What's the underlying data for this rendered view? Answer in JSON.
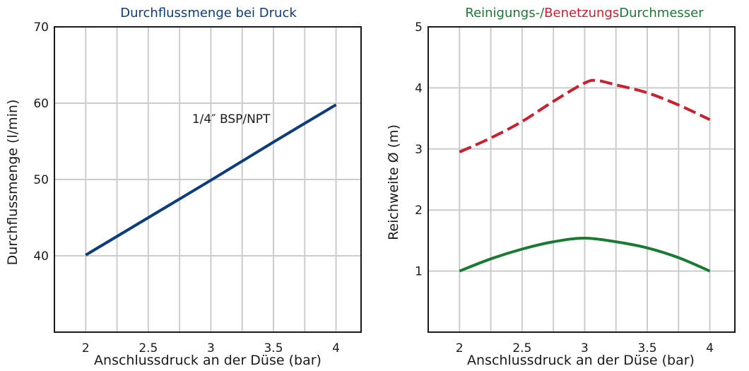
{
  "chart_data": [
    {
      "type": "line",
      "title": "Durchflussmenge bei Druck",
      "title_color": "#0d3c7a",
      "xlabel": "Anschlussdruck an der Düse (bar)",
      "ylabel": "Durchflussmenge (l/min)",
      "xlim": [
        1.75,
        4.2
      ],
      "ylim": [
        30,
        70
      ],
      "xticks": [
        2,
        2.5,
        3,
        3.5,
        4
      ],
      "xtick_labels": [
        "2",
        "2.5",
        "3",
        "3.5",
        "4"
      ],
      "yticks": [
        40,
        50,
        60,
        70
      ],
      "ytick_labels": [
        "40",
        "50",
        "60",
        "70"
      ],
      "x_grid": [
        2,
        2.25,
        2.5,
        2.75,
        3,
        3.25,
        3.5,
        3.75,
        4
      ],
      "y_grid": [
        40,
        50,
        60
      ],
      "grid": true,
      "annotation": {
        "text": "1/4″ BSP/NPT",
        "x": 2.85,
        "y": 57.4
      },
      "series": [
        {
          "color": "#0d3c7a",
          "dashed": false,
          "x": [
            2,
            2.5,
            3,
            3.5,
            4
          ],
          "y": [
            40.1,
            45,
            49.9,
            54.9,
            59.8
          ]
        }
      ]
    },
    {
      "type": "line",
      "title_parts": [
        {
          "text": "Reinigungs-/",
          "color": "#1a7a32"
        },
        {
          "text": "Benetzungs",
          "color": "#c8202f"
        },
        {
          "text": "Durchmesser",
          "color": "#1a7a32"
        }
      ],
      "xlabel": "Anschlussdruck an der Düse (bar)",
      "ylabel": "Reichweite Ø (m)",
      "xlim": [
        1.75,
        4.2
      ],
      "ylim": [
        0,
        5
      ],
      "xticks": [
        2,
        2.5,
        3,
        3.5,
        4
      ],
      "xtick_labels": [
        "2",
        "2.5",
        "3",
        "3.5",
        "4"
      ],
      "yticks": [
        1,
        2,
        3,
        4,
        5
      ],
      "ytick_labels": [
        "1",
        "2",
        "3",
        "4",
        "5"
      ],
      "x_grid": [
        2,
        2.25,
        2.5,
        2.75,
        3,
        3.25,
        3.5,
        3.75,
        4
      ],
      "y_grid": [
        1,
        2,
        3,
        4
      ],
      "grid": true,
      "series": [
        {
          "color": "#c8202f",
          "dashed": true,
          "x": [
            2,
            2.25,
            2.5,
            2.75,
            3,
            3.1,
            3.25,
            3.5,
            3.75,
            4
          ],
          "y": [
            2.95,
            3.18,
            3.45,
            3.78,
            4.08,
            4.12,
            4.05,
            3.92,
            3.72,
            3.48
          ]
        },
        {
          "color": "#1a7a32",
          "dashed": false,
          "x": [
            2,
            2.25,
            2.5,
            2.75,
            3,
            3.25,
            3.5,
            3.75,
            4
          ],
          "y": [
            1.0,
            1.2,
            1.36,
            1.48,
            1.54,
            1.48,
            1.38,
            1.22,
            1.0
          ]
        }
      ]
    }
  ]
}
